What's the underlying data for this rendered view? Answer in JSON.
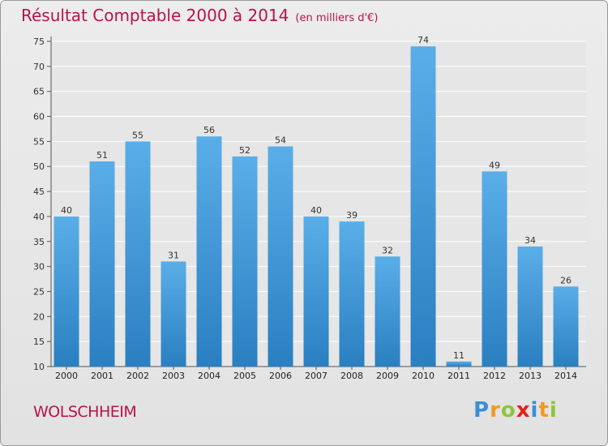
{
  "header": {
    "title": "Résultat Comptable 2000 à 2014",
    "unit": "(en milliers d'€)"
  },
  "footer": {
    "town": "WOLSCHHEIM",
    "logo": [
      {
        "ch": "P",
        "color": "#3a8fd4"
      },
      {
        "ch": "r",
        "color": "#f39a1e"
      },
      {
        "ch": "o",
        "color": "#8cc63f"
      },
      {
        "ch": "x",
        "color": "#e2231a"
      },
      {
        "ch": "i",
        "color": "#3a8fd4"
      },
      {
        "ch": "t",
        "color": "#f39a1e"
      },
      {
        "ch": "i",
        "color": "#8cc63f"
      }
    ]
  },
  "colors": {
    "title": "#b9124a",
    "bar_top": "#5aaee8",
    "bar_bottom": "#2a7fc1"
  },
  "chart_data": {
    "type": "bar",
    "categories": [
      "2000",
      "2001",
      "2002",
      "2003",
      "2004",
      "2005",
      "2006",
      "2007",
      "2008",
      "2009",
      "2010",
      "2011",
      "2012",
      "2013",
      "2014"
    ],
    "values": [
      40,
      51,
      55,
      31,
      56,
      52,
      54,
      40,
      39,
      32,
      74,
      11,
      49,
      34,
      26
    ],
    "data_labels": [
      "40",
      "51",
      "55",
      "31",
      "56",
      "52",
      "54",
      "40",
      "39",
      "32",
      "74",
      "11",
      "49",
      "34",
      "26"
    ],
    "yticks": [
      10,
      15,
      20,
      25,
      30,
      35,
      40,
      45,
      50,
      55,
      60,
      65,
      70,
      75
    ],
    "ylim": [
      10,
      75
    ],
    "grid": true,
    "xlabel": "",
    "ylabel": ""
  }
}
